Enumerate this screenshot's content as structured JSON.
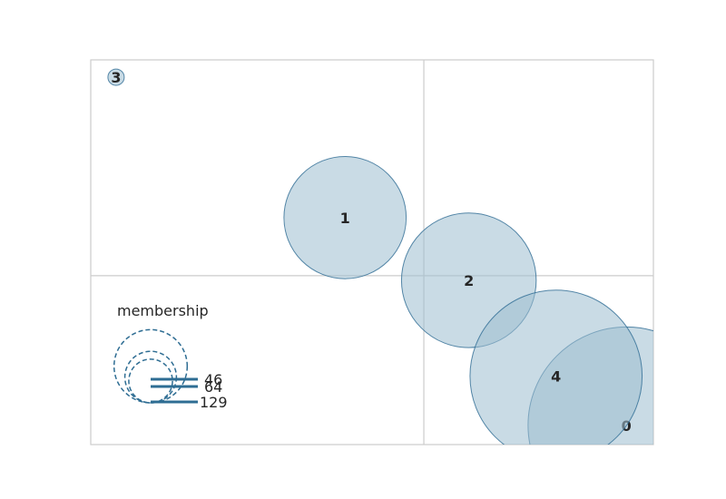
{
  "chart_data": {
    "type": "scatter",
    "subtype": "bubble",
    "title": "",
    "xlabel": "",
    "ylabel": "",
    "xlim": [
      0,
      1
    ],
    "ylim": [
      0,
      1
    ],
    "axis_dividers": {
      "x": 0.592,
      "y": 0.439
    },
    "grid": false,
    "colors": {
      "fill": "#9dbdd0",
      "stroke": "#2e6b93",
      "frame": "#cccccc",
      "divider": "#cccccc",
      "legend": "#2e6d93"
    },
    "points": [
      {
        "label": "0",
        "x": 0.952,
        "y": 0.05,
        "size": 145
      },
      {
        "label": "1",
        "x": 0.452,
        "y": 0.59,
        "size": 56
      },
      {
        "label": "2",
        "x": 0.672,
        "y": 0.427,
        "size": 68
      },
      {
        "label": "3",
        "x": 0.045,
        "y": 0.955,
        "size": 1
      },
      {
        "label": "4",
        "x": 0.827,
        "y": 0.178,
        "size": 111
      }
    ],
    "legend": {
      "title": "membership",
      "position": "lower-left",
      "entries": [
        {
          "label": "46",
          "size": 46
        },
        {
          "label": "64",
          "size": 64
        },
        {
          "label": "129",
          "size": 129
        }
      ]
    }
  }
}
